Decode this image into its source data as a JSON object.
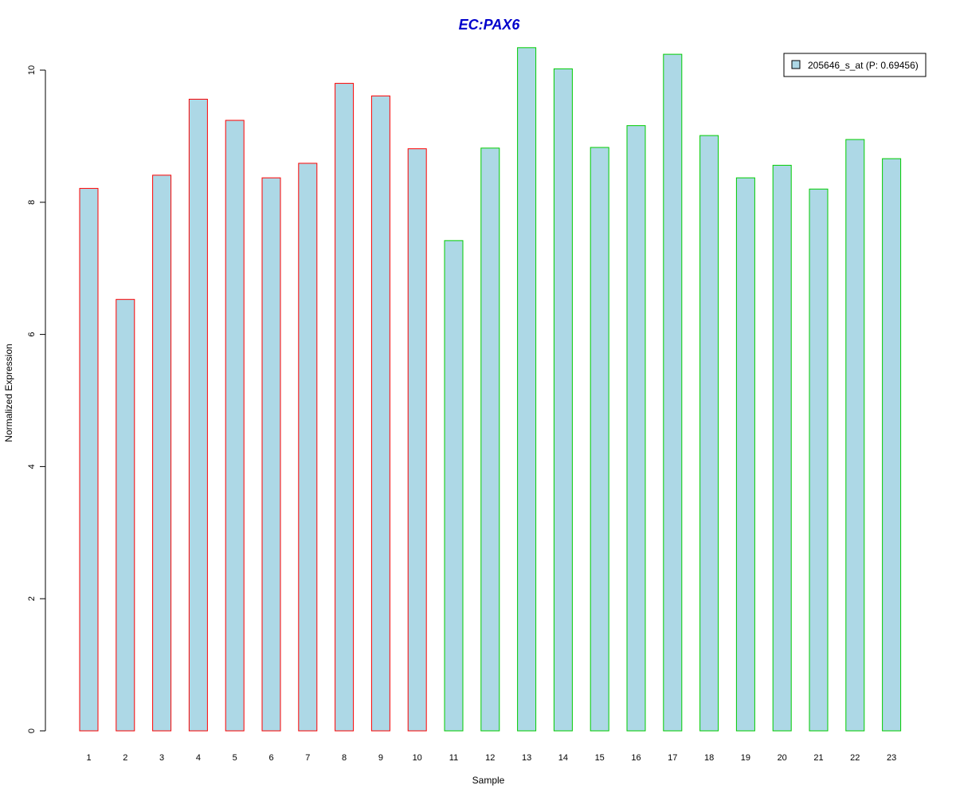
{
  "chart_data": {
    "type": "bar",
    "title": "EC:PAX6",
    "xlabel": "Sample",
    "ylabel": "Normalized Expression",
    "ylim": [
      0,
      10.4
    ],
    "yticks": [
      "0",
      "2",
      "4",
      "6",
      "8",
      "10"
    ],
    "categories": [
      "1",
      "2",
      "3",
      "4",
      "5",
      "6",
      "7",
      "8",
      "9",
      "10",
      "11",
      "12",
      "13",
      "14",
      "15",
      "16",
      "17",
      "18",
      "19",
      "20",
      "21",
      "22",
      "23"
    ],
    "series": [
      {
        "name": "205646_s_at (P: 0.69456)",
        "values": [
          8.21,
          6.53,
          8.41,
          9.56,
          9.24,
          8.37,
          8.59,
          9.8,
          9.61,
          8.81,
          7.42,
          8.82,
          10.34,
          10.02,
          8.83,
          9.16,
          10.24,
          9.01,
          8.37,
          8.56,
          8.2,
          8.95,
          8.66
        ]
      }
    ],
    "groups": [
      {
        "samples": [
          1,
          2,
          3,
          4,
          5,
          6,
          7,
          8,
          9,
          10
        ],
        "border_color": "#ff0000"
      },
      {
        "samples": [
          11,
          12,
          13,
          14,
          15,
          16,
          17,
          18,
          19,
          20,
          21,
          22,
          23
        ],
        "border_color": "#00cc00"
      }
    ],
    "bar_fill": "#add8e6",
    "title_color": "#0000cc",
    "legend_position": "top-right",
    "grid": false
  }
}
